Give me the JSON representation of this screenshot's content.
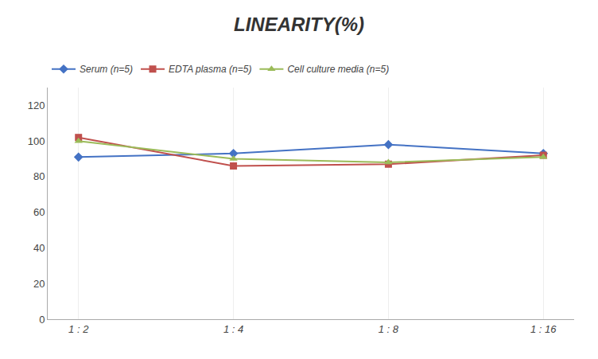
{
  "chart_data": {
    "type": "line",
    "title": "LINEARITY(%)",
    "categories": [
      "1 : 2",
      "1 : 4",
      "1 : 8",
      "1 : 16"
    ],
    "series": [
      {
        "name": "Serum (n=5)",
        "color": "#4472C4",
        "marker": "diamond",
        "values": [
          91,
          93,
          98,
          93
        ]
      },
      {
        "name": "EDTA plasma (n=5)",
        "color": "#C0504D",
        "marker": "square",
        "values": [
          102,
          86,
          87,
          92
        ]
      },
      {
        "name": "Cell culture media (n=5)",
        "color": "#9BBB59",
        "marker": "triangle-up",
        "values": [
          100,
          90,
          88,
          91
        ]
      }
    ],
    "ylim": [
      0,
      130
    ],
    "yticks": [
      0,
      20,
      40,
      60,
      80,
      100,
      120
    ],
    "grid": "x",
    "legend": "top left"
  }
}
